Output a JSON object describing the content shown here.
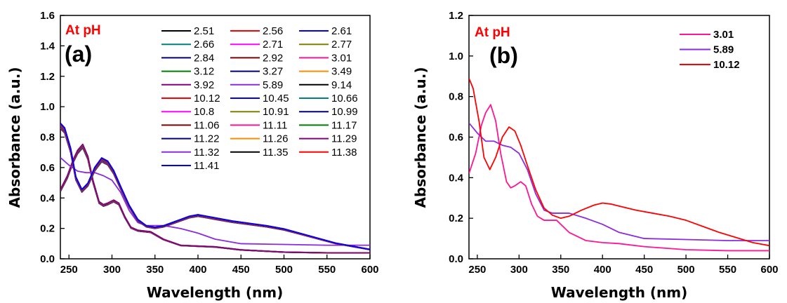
{
  "chart_data": [
    {
      "type": "line",
      "panel": "(a)",
      "annotation": "At pH",
      "xlabel": "Wavelength (nm)",
      "ylabel": "Absorbance (a.u.)",
      "xlim": [
        240,
        600
      ],
      "ylim": [
        0,
        1.6
      ],
      "xticks": [
        250,
        300,
        350,
        400,
        450,
        500,
        550,
        600
      ],
      "yticks": [
        0.0,
        0.2,
        0.4,
        0.6,
        0.8,
        1.0,
        1.2,
        1.4,
        1.6
      ],
      "grid": false,
      "legend_position": "top-right",
      "legend_columns": 3,
      "series": [
        {
          "name": "2.51",
          "color": "#000000",
          "profile": "acid"
        },
        {
          "name": "2.56",
          "color": "#ff0000",
          "profile": "acid"
        },
        {
          "name": "2.61",
          "color": "#0000ff",
          "profile": "acid"
        },
        {
          "name": "2.66",
          "color": "#008080",
          "profile": "acid"
        },
        {
          "name": "2.71",
          "color": "#ff00ff",
          "profile": "acid"
        },
        {
          "name": "2.77",
          "color": "#808000",
          "profile": "acid"
        },
        {
          "name": "2.84",
          "color": "#000080",
          "profile": "acid"
        },
        {
          "name": "2.92",
          "color": "#800000",
          "profile": "acid"
        },
        {
          "name": "3.01",
          "color": "#ff1493",
          "profile": "acid"
        },
        {
          "name": "3.12",
          "color": "#008000",
          "profile": "acid"
        },
        {
          "name": "3.27",
          "color": "#000080",
          "profile": "acid"
        },
        {
          "name": "3.49",
          "color": "#ff8c00",
          "profile": "acid"
        },
        {
          "name": "3.92",
          "color": "#800080",
          "profile": "acid"
        },
        {
          "name": "5.89",
          "color": "#8a2be2",
          "profile": "neutral"
        },
        {
          "name": "9.14",
          "color": "#000000",
          "profile": "base"
        },
        {
          "name": "10.12",
          "color": "#ff0000",
          "profile": "base"
        },
        {
          "name": "10.45",
          "color": "#0000ff",
          "profile": "base"
        },
        {
          "name": "10.66",
          "color": "#008080",
          "profile": "base"
        },
        {
          "name": "10.8",
          "color": "#ff00ff",
          "profile": "base"
        },
        {
          "name": "10.91",
          "color": "#808000",
          "profile": "base"
        },
        {
          "name": "10.99",
          "color": "#000080",
          "profile": "base"
        },
        {
          "name": "11.06",
          "color": "#800000",
          "profile": "base"
        },
        {
          "name": "11.11",
          "color": "#ff1493",
          "profile": "base"
        },
        {
          "name": "11.17",
          "color": "#008000",
          "profile": "base"
        },
        {
          "name": "11.22",
          "color": "#000080",
          "profile": "base"
        },
        {
          "name": "11.26",
          "color": "#ff8c00",
          "profile": "base"
        },
        {
          "name": "11.29",
          "color": "#800080",
          "profile": "base"
        },
        {
          "name": "11.32",
          "color": "#8a2be2",
          "profile": "base"
        },
        {
          "name": "11.35",
          "color": "#000000",
          "profile": "base"
        },
        {
          "name": "11.38",
          "color": "#ff0000",
          "profile": "base"
        },
        {
          "name": "11.41",
          "color": "#0000ff",
          "profile": "base"
        }
      ],
      "profiles": {
        "acid": {
          "x": [
            240,
            248,
            255,
            260,
            266,
            272,
            278,
            285,
            290,
            295,
            302,
            308,
            315,
            322,
            330,
            345,
            360,
            380,
            400,
            420,
            450,
            500,
            550,
            600
          ],
          "y": [
            0.46,
            0.55,
            0.66,
            0.72,
            0.76,
            0.68,
            0.52,
            0.38,
            0.36,
            0.37,
            0.39,
            0.37,
            0.28,
            0.21,
            0.19,
            0.18,
            0.13,
            0.09,
            0.085,
            0.08,
            0.06,
            0.045,
            0.04,
            0.04
          ]
        },
        "neutral": {
          "x": [
            240,
            250,
            260,
            270,
            280,
            290,
            300,
            310,
            320,
            330,
            340,
            350,
            360,
            380,
            400,
            420,
            450,
            500,
            550,
            600
          ],
          "y": [
            0.67,
            0.62,
            0.58,
            0.57,
            0.57,
            0.55,
            0.52,
            0.44,
            0.32,
            0.24,
            0.22,
            0.22,
            0.22,
            0.2,
            0.17,
            0.13,
            0.1,
            0.095,
            0.09,
            0.09
          ]
        },
        "base": {
          "x": [
            240,
            245,
            252,
            258,
            265,
            272,
            280,
            288,
            295,
            302,
            310,
            320,
            330,
            340,
            350,
            360,
            375,
            390,
            400,
            410,
            420,
            440,
            460,
            480,
            500,
            520,
            540,
            560,
            580,
            600
          ],
          "y": [
            0.86,
            0.83,
            0.7,
            0.52,
            0.44,
            0.48,
            0.58,
            0.64,
            0.62,
            0.56,
            0.46,
            0.34,
            0.25,
            0.21,
            0.2,
            0.21,
            0.24,
            0.27,
            0.28,
            0.27,
            0.26,
            0.24,
            0.225,
            0.21,
            0.19,
            0.16,
            0.13,
            0.1,
            0.08,
            0.06
          ]
        }
      }
    },
    {
      "type": "line",
      "panel": "(b)",
      "annotation": "At pH",
      "xlabel": "Wavelength (nm)",
      "ylabel": "Absorbance (a.u.)",
      "xlim": [
        240,
        600
      ],
      "ylim": [
        0,
        1.2
      ],
      "xticks": [
        250,
        300,
        350,
        400,
        450,
        500,
        550,
        600
      ],
      "yticks": [
        0.0,
        0.2,
        0.4,
        0.6,
        0.8,
        1.0,
        1.2
      ],
      "grid": false,
      "legend_position": "top-right",
      "legend_columns": 1,
      "series": [
        {
          "name": "3.01",
          "color": "#ff1493",
          "x": [
            240,
            248,
            255,
            260,
            266,
            272,
            278,
            285,
            290,
            295,
            302,
            308,
            315,
            322,
            330,
            345,
            360,
            380,
            400,
            420,
            450,
            500,
            550,
            600
          ],
          "y": [
            0.42,
            0.52,
            0.66,
            0.72,
            0.76,
            0.68,
            0.52,
            0.38,
            0.35,
            0.36,
            0.38,
            0.36,
            0.27,
            0.21,
            0.19,
            0.19,
            0.13,
            0.09,
            0.08,
            0.075,
            0.06,
            0.045,
            0.04,
            0.04
          ]
        },
        {
          "name": "5.89",
          "color": "#8a2be2",
          "x": [
            240,
            250,
            260,
            270,
            280,
            290,
            300,
            310,
            320,
            330,
            340,
            350,
            360,
            380,
            400,
            420,
            450,
            500,
            550,
            600
          ],
          "y": [
            0.67,
            0.62,
            0.58,
            0.58,
            0.56,
            0.55,
            0.52,
            0.44,
            0.32,
            0.24,
            0.225,
            0.225,
            0.225,
            0.2,
            0.17,
            0.13,
            0.1,
            0.095,
            0.09,
            0.09
          ]
        },
        {
          "name": "10.12",
          "color": "#ff0000",
          "x": [
            240,
            245,
            252,
            258,
            265,
            272,
            280,
            288,
            295,
            302,
            310,
            320,
            330,
            340,
            350,
            360,
            375,
            390,
            400,
            410,
            420,
            440,
            460,
            480,
            500,
            520,
            540,
            560,
            580,
            600
          ],
          "y": [
            0.89,
            0.84,
            0.68,
            0.5,
            0.44,
            0.5,
            0.6,
            0.65,
            0.63,
            0.56,
            0.46,
            0.34,
            0.25,
            0.215,
            0.2,
            0.21,
            0.24,
            0.265,
            0.275,
            0.27,
            0.26,
            0.24,
            0.225,
            0.21,
            0.19,
            0.16,
            0.13,
            0.105,
            0.08,
            0.065
          ]
        }
      ]
    }
  ]
}
